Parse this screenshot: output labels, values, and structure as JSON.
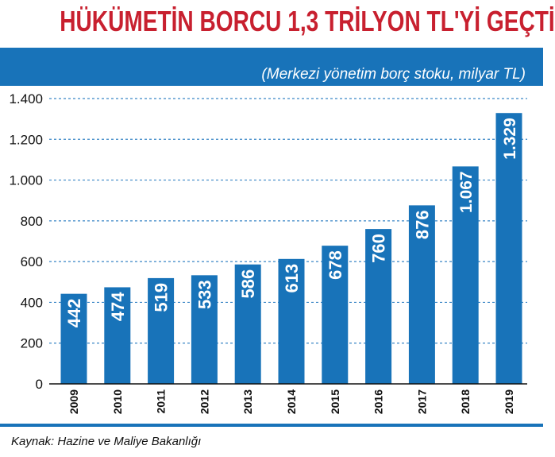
{
  "title": "HÜKÜMETİN BORCU 1,3 TRİLYON TL'Yİ GEÇTİ",
  "subtitle": "(Merkezi yönetim borç stoku, milyar TL)",
  "source": "Kaynak: Hazine ve Maliye Bakanlığı",
  "colors": {
    "title": "#c8202f",
    "bar": "#1873b9",
    "band": "#1873b9",
    "grid": "#3a86c6"
  },
  "chart_data": {
    "type": "bar",
    "title": "HÜKÜMETİN BORCU 1,3 TRİLYON TL'Yİ GEÇTİ",
    "subtitle": "(Merkezi yönetim borç stoku, milyar TL)",
    "xlabel": "",
    "ylabel": "",
    "categories": [
      "2009",
      "2010",
      "2011",
      "2012",
      "2013",
      "2014",
      "2015",
      "2016",
      "2017",
      "2018",
      "2019"
    ],
    "values": [
      442,
      474,
      519,
      533,
      586,
      613,
      678,
      760,
      876,
      1067,
      1329
    ],
    "value_labels": [
      "442",
      "474",
      "519",
      "533",
      "586",
      "613",
      "678",
      "760",
      "876",
      "1.067",
      "1.329"
    ],
    "ylim": [
      0,
      1400
    ],
    "yticks": [
      0,
      200,
      400,
      600,
      800,
      1000,
      1200,
      1400
    ],
    "ytick_labels": [
      "0",
      "200",
      "400",
      "600",
      "800",
      "1.000",
      "1.200",
      "1.400"
    ],
    "grid": true,
    "legend": "none"
  }
}
